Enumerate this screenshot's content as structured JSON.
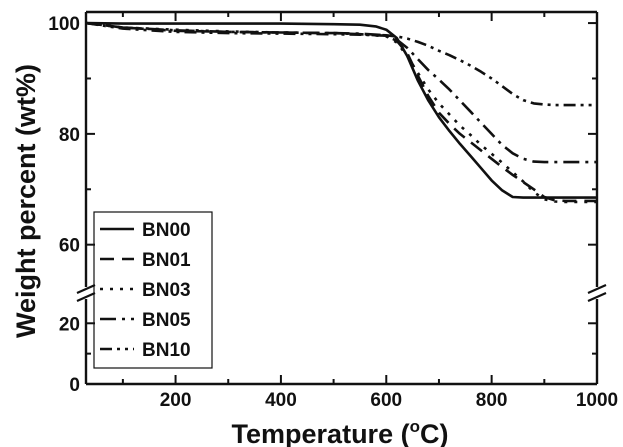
{
  "chart_data": {
    "type": "line",
    "xlabel": "Temperature (",
    "xlabel_sup": "o",
    "xlabel_suffix": "C)",
    "ylabel": "Weight percent (wt%)",
    "xlim": [
      30,
      1000
    ],
    "x_ticks": [
      200,
      400,
      600,
      800,
      1000
    ],
    "x_tick_labels": [
      "200",
      "400",
      "600",
      "800",
      "1000"
    ],
    "y_ticks": [
      0,
      20,
      60,
      80,
      100
    ],
    "y_tick_labels": [
      "0",
      "20",
      "60",
      "80",
      "100"
    ],
    "y_axis_break": true,
    "y_lower_range": [
      0,
      28
    ],
    "y_upper_range": [
      52,
      102
    ],
    "legend_placement": "lower-left",
    "grid": false,
    "series": [
      {
        "name": "BN00",
        "dash": "",
        "x": [
          30,
          100,
          200,
          300,
          400,
          500,
          550,
          580,
          600,
          620,
          640,
          660,
          680,
          700,
          720,
          740,
          760,
          780,
          800,
          820,
          840,
          860,
          900,
          950,
          1000
        ],
        "y": [
          100,
          99.9,
          99.9,
          99.9,
          99.9,
          99.8,
          99.7,
          99.4,
          98.8,
          97.3,
          94.0,
          89.6,
          86.0,
          83.0,
          80.5,
          78.2,
          76.0,
          73.8,
          71.6,
          69.8,
          68.6,
          68.5,
          68.5,
          68.5,
          68.5
        ]
      },
      {
        "name": "BN01",
        "dash": "14,8",
        "x": [
          30,
          100,
          200,
          300,
          400,
          500,
          550,
          600,
          620,
          640,
          660,
          680,
          700,
          720,
          740,
          760,
          780,
          800,
          820,
          840,
          860,
          880,
          900,
          920,
          940,
          1000
        ],
        "y": [
          100,
          99.2,
          98.6,
          98.4,
          98.3,
          98.2,
          98.0,
          97.7,
          96.8,
          94.5,
          90.5,
          86.8,
          83.8,
          81.8,
          80.0,
          78.5,
          77.0,
          75.5,
          74.0,
          72.6,
          71.3,
          70.0,
          68.6,
          68.0,
          67.9,
          67.9
        ]
      },
      {
        "name": "BN03",
        "dash": "3,7",
        "x": [
          30,
          100,
          200,
          300,
          400,
          500,
          550,
          600,
          620,
          640,
          660,
          680,
          700,
          720,
          740,
          760,
          780,
          800,
          820,
          840,
          860,
          880,
          900,
          920,
          940,
          1000
        ],
        "y": [
          100,
          99.2,
          98.8,
          98.5,
          98.3,
          98.2,
          98.0,
          97.6,
          96.5,
          94.0,
          91.0,
          88.0,
          85.5,
          83.5,
          81.5,
          79.8,
          78.0,
          76.4,
          74.8,
          73.1,
          71.4,
          69.5,
          68.2,
          67.8,
          67.7,
          67.7
        ]
      },
      {
        "name": "BN05",
        "dash": "16,6,3,6",
        "x": [
          30,
          100,
          200,
          300,
          400,
          500,
          550,
          600,
          620,
          640,
          660,
          680,
          700,
          720,
          740,
          760,
          780,
          800,
          820,
          840,
          860,
          880,
          900,
          920,
          1000
        ],
        "y": [
          100,
          99.2,
          98.7,
          98.4,
          98.3,
          98.2,
          98.1,
          97.8,
          97.0,
          95.5,
          93.5,
          91.5,
          89.8,
          88.0,
          86.0,
          84.0,
          82.0,
          80.0,
          78.0,
          76.5,
          75.5,
          75.0,
          74.9,
          74.9,
          74.9
        ]
      },
      {
        "name": "BN10",
        "dash": "12,5,3,5,3,5",
        "x": [
          30,
          100,
          200,
          300,
          400,
          500,
          550,
          600,
          620,
          640,
          660,
          680,
          700,
          720,
          740,
          760,
          780,
          800,
          820,
          840,
          860,
          880,
          900,
          920,
          940,
          1000
        ],
        "y": [
          100,
          99.0,
          98.4,
          98.2,
          98.1,
          98.0,
          97.9,
          97.8,
          97.6,
          97.2,
          96.6,
          95.9,
          95.0,
          94.2,
          93.3,
          92.3,
          91.2,
          90.0,
          88.6,
          87.2,
          86.1,
          85.5,
          85.3,
          85.2,
          85.2,
          85.2
        ]
      }
    ]
  }
}
